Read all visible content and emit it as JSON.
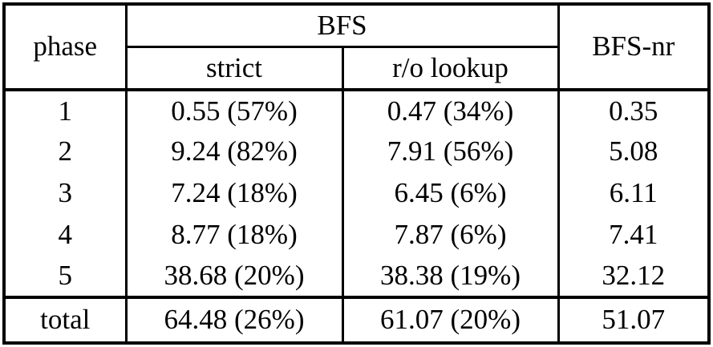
{
  "colors": {
    "border": "#000000",
    "text": "#000000",
    "background": "#ffffff"
  },
  "table": {
    "headers": {
      "phase": "phase",
      "group": "BFS",
      "strict": "strict",
      "ro_lookup": "r/o lookup",
      "bfs_nr": "BFS-nr"
    },
    "rows": [
      {
        "phase": "1",
        "strict": "0.55 (57%)",
        "ro_lookup": "0.47 (34%)",
        "bfs_nr": "0.35"
      },
      {
        "phase": "2",
        "strict": "9.24 (82%)",
        "ro_lookup": "7.91 (56%)",
        "bfs_nr": "5.08"
      },
      {
        "phase": "3",
        "strict": "7.24 (18%)",
        "ro_lookup": "6.45 (6%)",
        "bfs_nr": "6.11"
      },
      {
        "phase": "4",
        "strict": "8.77 (18%)",
        "ro_lookup": "7.87 (6%)",
        "bfs_nr": "7.41"
      },
      {
        "phase": "5",
        "strict": "38.68 (20%)",
        "ro_lookup": "38.38 (19%)",
        "bfs_nr": "32.12"
      }
    ],
    "total": {
      "phase": "total",
      "strict": "64.48 (26%)",
      "ro_lookup": "61.07 (20%)",
      "bfs_nr": "51.07"
    }
  },
  "chart_data": {
    "type": "table",
    "title": "",
    "columns": [
      "phase",
      "BFS strict",
      "BFS r/o lookup",
      "BFS-nr"
    ],
    "rows": [
      [
        "1",
        "0.55 (57%)",
        "0.47 (34%)",
        "0.35"
      ],
      [
        "2",
        "9.24 (82%)",
        "7.91 (56%)",
        "5.08"
      ],
      [
        "3",
        "7.24 (18%)",
        "6.45 (6%)",
        "6.11"
      ],
      [
        "4",
        "8.77 (18%)",
        "7.87 (6%)",
        "7.41"
      ],
      [
        "5",
        "38.68 (20%)",
        "38.38 (19%)",
        "32.12"
      ],
      [
        "total",
        "64.48 (26%)",
        "61.07 (20%)",
        "51.07"
      ]
    ]
  }
}
